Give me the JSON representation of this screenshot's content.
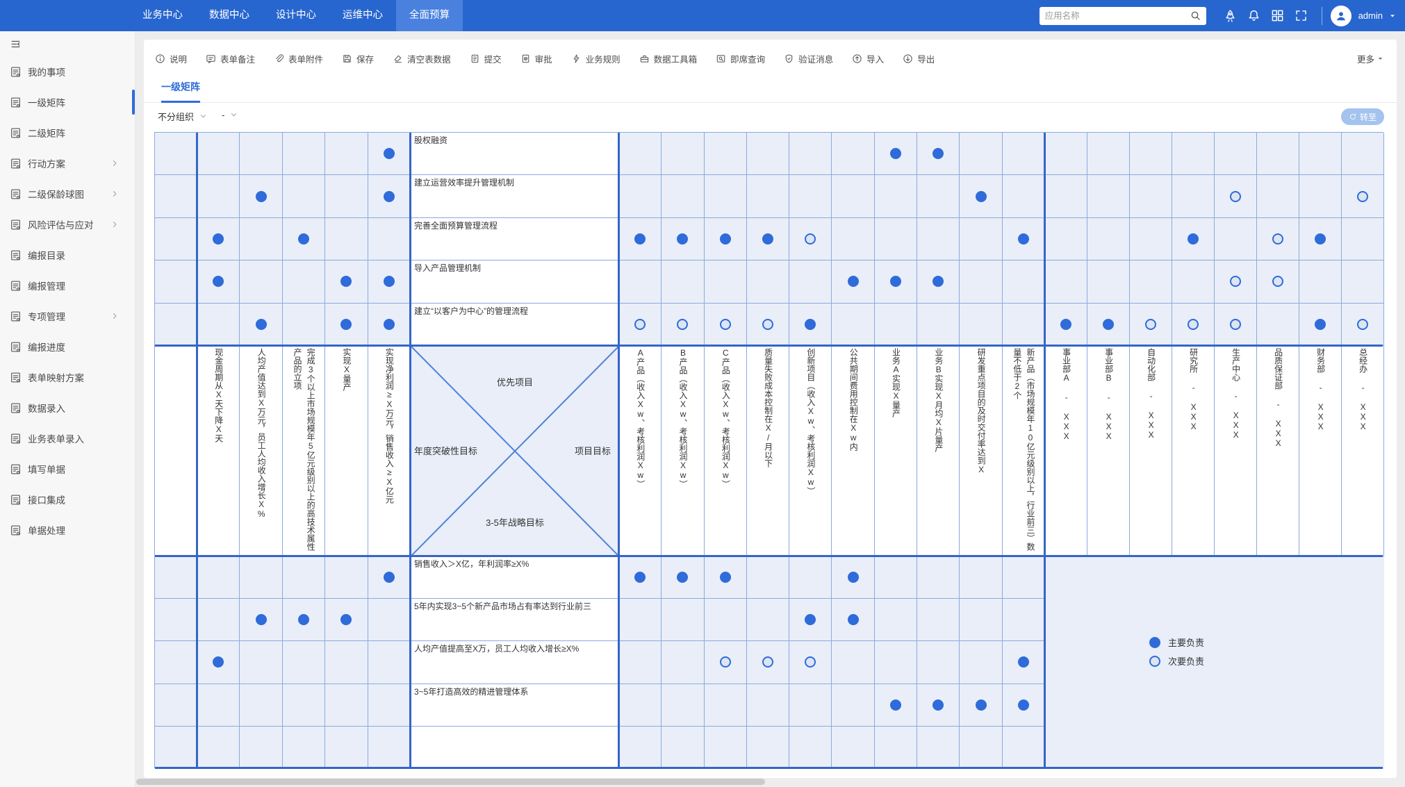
{
  "navbar": {
    "menu": [
      "业务中心",
      "数据中心",
      "设计中心",
      "运维中心",
      "全面预算"
    ],
    "active_index": 4,
    "search_placeholder": "应用名称",
    "icons": [
      "rocket-icon",
      "bell-icon",
      "apps-grid-icon",
      "fullscreen-icon"
    ],
    "user": "admin"
  },
  "sidebar": {
    "items": [
      {
        "label": "我的事项",
        "expand": false,
        "active": false
      },
      {
        "label": "一级矩阵",
        "expand": false,
        "active": true
      },
      {
        "label": "二级矩阵",
        "expand": false,
        "active": false
      },
      {
        "label": "行动方案",
        "expand": true,
        "active": false
      },
      {
        "label": "二级保龄球图",
        "expand": true,
        "active": false
      },
      {
        "label": "风险评估与应对",
        "expand": true,
        "active": false
      },
      {
        "label": "编报目录",
        "expand": false,
        "active": false
      },
      {
        "label": "编报管理",
        "expand": false,
        "active": false
      },
      {
        "label": "专项管理",
        "expand": true,
        "active": false
      },
      {
        "label": "编报进度",
        "expand": false,
        "active": false
      },
      {
        "label": "表单映射方案",
        "expand": false,
        "active": false
      },
      {
        "label": "数据录入",
        "expand": false,
        "active": false
      },
      {
        "label": "业务表单录入",
        "expand": false,
        "active": false
      },
      {
        "label": "填写单据",
        "expand": false,
        "active": false
      },
      {
        "label": "接口集成",
        "expand": false,
        "active": false
      },
      {
        "label": "单据处理",
        "expand": false,
        "active": false
      }
    ]
  },
  "toolbar": {
    "items": [
      {
        "icon": "info-icon",
        "label": "说明"
      },
      {
        "icon": "comment-icon",
        "label": "表单备注"
      },
      {
        "icon": "attachment-icon",
        "label": "表单附件"
      },
      {
        "icon": "save-icon",
        "label": "保存"
      },
      {
        "icon": "clear-icon",
        "label": "清空表数据"
      },
      {
        "icon": "submit-icon",
        "label": "提交"
      },
      {
        "icon": "approve-icon",
        "label": "审批"
      },
      {
        "icon": "rules-icon",
        "label": "业务规则"
      },
      {
        "icon": "toolbox-icon",
        "label": "数据工具箱"
      },
      {
        "icon": "query-icon",
        "label": "即席查询"
      },
      {
        "icon": "verify-icon",
        "label": "验证消息"
      },
      {
        "icon": "import-icon",
        "label": "导入"
      },
      {
        "icon": "export-icon",
        "label": "导出"
      }
    ],
    "more_label": "更多"
  },
  "view": {
    "tab": "一级矩阵",
    "org_filter": "不分组织",
    "period_filter": "-",
    "goto_label": "转至"
  },
  "matrix": {
    "center": {
      "top": "优先项目",
      "left": "年度突破性目标",
      "right": "项目目标",
      "bottom": "3-5年战略目标"
    },
    "top_rows": [
      "股权融资",
      "建立运营效率提升管理机制",
      "完善全面预算管理流程",
      "导入产品管理机制",
      "建立“以客户为中心”的管理流程"
    ],
    "bottom_rows": [
      "销售收入＞X亿，年利润率≥X%",
      "5年内实现3~5个新产品市场占有率达到行业前三",
      "人均产值提高至X万，员工人均收入增长≥X%",
      "3~5年打造高效的精进管理体系",
      ""
    ],
    "left_cols": [
      "现金周期从X天下降X天",
      "人均产值达到X万元，员工人均收入增长X%",
      "完成3个以上市场规模年5亿元级别以上的高技术属性产品的立项",
      "实现X量产",
      "实现净利润≥X万元，销售收入≥X亿元"
    ],
    "mid_cols": [
      "A产品（收入Xw、考核利润Xw）",
      "B产品（收入Xw、考核利润Xw）",
      "C产品（收入Xw、考核利润Xw）",
      "质量失败成本控制在X/月以下",
      "创新项目（收入Xw、考核利润Xw）",
      "公共期间费用控制在Xw内",
      "业务A实现X量产",
      "业务B实现X月均X片量产",
      "研发重点项目的及时交付率达到X",
      "新产品（市场规模年10亿元级别以上，行业前三）数量不低于2个"
    ],
    "right_cols": [
      "事业部A - XXX",
      "事业部B - XXX",
      "自动化部 - XXX",
      "研究所 - XXX",
      "生产中心 - XXX",
      "品质保证部 - XXX",
      "财务部 - XXX",
      "总经办 - XXX"
    ],
    "legend": [
      {
        "type": "P",
        "label": "主要负责"
      },
      {
        "type": "S",
        "label": "次要负责"
      }
    ],
    "dots": {
      "top_left": [
        [
          0,
          4,
          "P"
        ],
        [
          1,
          1,
          "P"
        ],
        [
          1,
          4,
          "P"
        ],
        [
          2,
          0,
          "P"
        ],
        [
          2,
          2,
          "P"
        ],
        [
          3,
          0,
          "P"
        ],
        [
          3,
          3,
          "P"
        ],
        [
          3,
          4,
          "P"
        ],
        [
          4,
          1,
          "P"
        ],
        [
          4,
          3,
          "P"
        ],
        [
          4,
          4,
          "P"
        ]
      ],
      "top_mid": [
        [
          0,
          6,
          "P"
        ],
        [
          0,
          7,
          "P"
        ],
        [
          1,
          8,
          "P"
        ],
        [
          2,
          0,
          "P"
        ],
        [
          2,
          1,
          "P"
        ],
        [
          2,
          2,
          "P"
        ],
        [
          2,
          3,
          "P"
        ],
        [
          2,
          4,
          "S"
        ],
        [
          2,
          9,
          "P"
        ],
        [
          3,
          5,
          "P"
        ],
        [
          3,
          6,
          "P"
        ],
        [
          3,
          7,
          "P"
        ],
        [
          4,
          0,
          "S"
        ],
        [
          4,
          1,
          "S"
        ],
        [
          4,
          2,
          "S"
        ],
        [
          4,
          3,
          "S"
        ],
        [
          4,
          4,
          "P"
        ]
      ],
      "top_right": [
        [
          1,
          4,
          "S"
        ],
        [
          1,
          7,
          "S"
        ],
        [
          2,
          3,
          "P"
        ],
        [
          2,
          5,
          "S"
        ],
        [
          2,
          6,
          "P"
        ],
        [
          3,
          4,
          "S"
        ],
        [
          3,
          5,
          "S"
        ],
        [
          4,
          0,
          "P"
        ],
        [
          4,
          1,
          "P"
        ],
        [
          4,
          2,
          "S"
        ],
        [
          4,
          3,
          "S"
        ],
        [
          4,
          4,
          "S"
        ],
        [
          4,
          6,
          "P"
        ],
        [
          4,
          7,
          "S"
        ]
      ],
      "bottom_left": [
        [
          0,
          4,
          "P"
        ],
        [
          1,
          1,
          "P"
        ],
        [
          1,
          2,
          "P"
        ],
        [
          1,
          3,
          "P"
        ],
        [
          2,
          0,
          "P"
        ]
      ],
      "bottom_mid": [
        [
          0,
          0,
          "P"
        ],
        [
          0,
          1,
          "P"
        ],
        [
          0,
          2,
          "P"
        ],
        [
          0,
          5,
          "P"
        ],
        [
          1,
          4,
          "P"
        ],
        [
          1,
          5,
          "P"
        ],
        [
          2,
          2,
          "S"
        ],
        [
          2,
          3,
          "S"
        ],
        [
          2,
          4,
          "S"
        ],
        [
          2,
          9,
          "P"
        ],
        [
          3,
          6,
          "P"
        ],
        [
          3,
          7,
          "P"
        ],
        [
          3,
          8,
          "P"
        ],
        [
          3,
          9,
          "P"
        ]
      ]
    }
  },
  "colors": {
    "navbar": "#2866cf",
    "navbar_active": "#4a81de",
    "accent": "#2f6bd9",
    "grid_line": "#8aabdd",
    "grid_bold": "#3565c8",
    "cell_bg": "#e9eef8",
    "primary_dot": "#2f6bd9"
  }
}
